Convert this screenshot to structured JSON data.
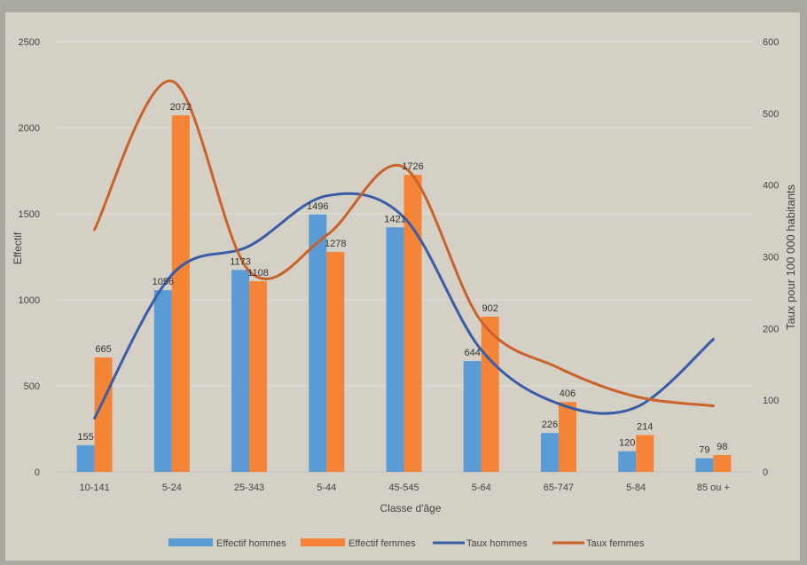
{
  "colors": {
    "bar_hommes": "#5b9bd5",
    "bar_femmes": "#f58436",
    "line_hommes": "#3a5ca6",
    "line_femmes": "#c9622b",
    "grid": "#e2e0da",
    "text": "#444444",
    "card_bg": "#d4d0c6",
    "outer_bg": "#a9a9a2"
  },
  "chart_data": {
    "type": "bar",
    "title": "",
    "xlabel": "Classe d'âge",
    "ylabel": "Effectif",
    "y2label": "Taux pour 100 000 habitants",
    "ylim": [
      0,
      2500
    ],
    "y2lim": [
      0,
      600
    ],
    "yticks": [
      "0",
      "500",
      "1000",
      "1500",
      "2000",
      "2500"
    ],
    "y2ticks": [
      "0",
      "100",
      "200",
      "300",
      "400",
      "500",
      "600"
    ],
    "grid": true,
    "legend_position": "bottom",
    "categories": [
      "10-141",
      "5-24",
      "25-343",
      "5-44",
      "45-545",
      "5-64",
      "65-747",
      "5-84",
      "85 ou +"
    ],
    "series": [
      {
        "name": "Effectif hommes",
        "type": "bar",
        "axis": "left",
        "values": [
          155,
          1056,
          1173,
          1496,
          1421,
          644,
          226,
          120,
          79
        ]
      },
      {
        "name": "Effectif femmes",
        "type": "bar",
        "axis": "left",
        "values": [
          665,
          2072,
          1108,
          1278,
          1726,
          902,
          406,
          214,
          98
        ]
      },
      {
        "name": "Taux hommes",
        "type": "line",
        "axis": "right",
        "values": [
          75,
          275,
          315,
          385,
          355,
          170,
          95,
          90,
          185
        ]
      },
      {
        "name": "Taux femmes",
        "type": "line",
        "axis": "right",
        "values": [
          338,
          545,
          280,
          330,
          425,
          210,
          145,
          105,
          92
        ]
      }
    ]
  }
}
